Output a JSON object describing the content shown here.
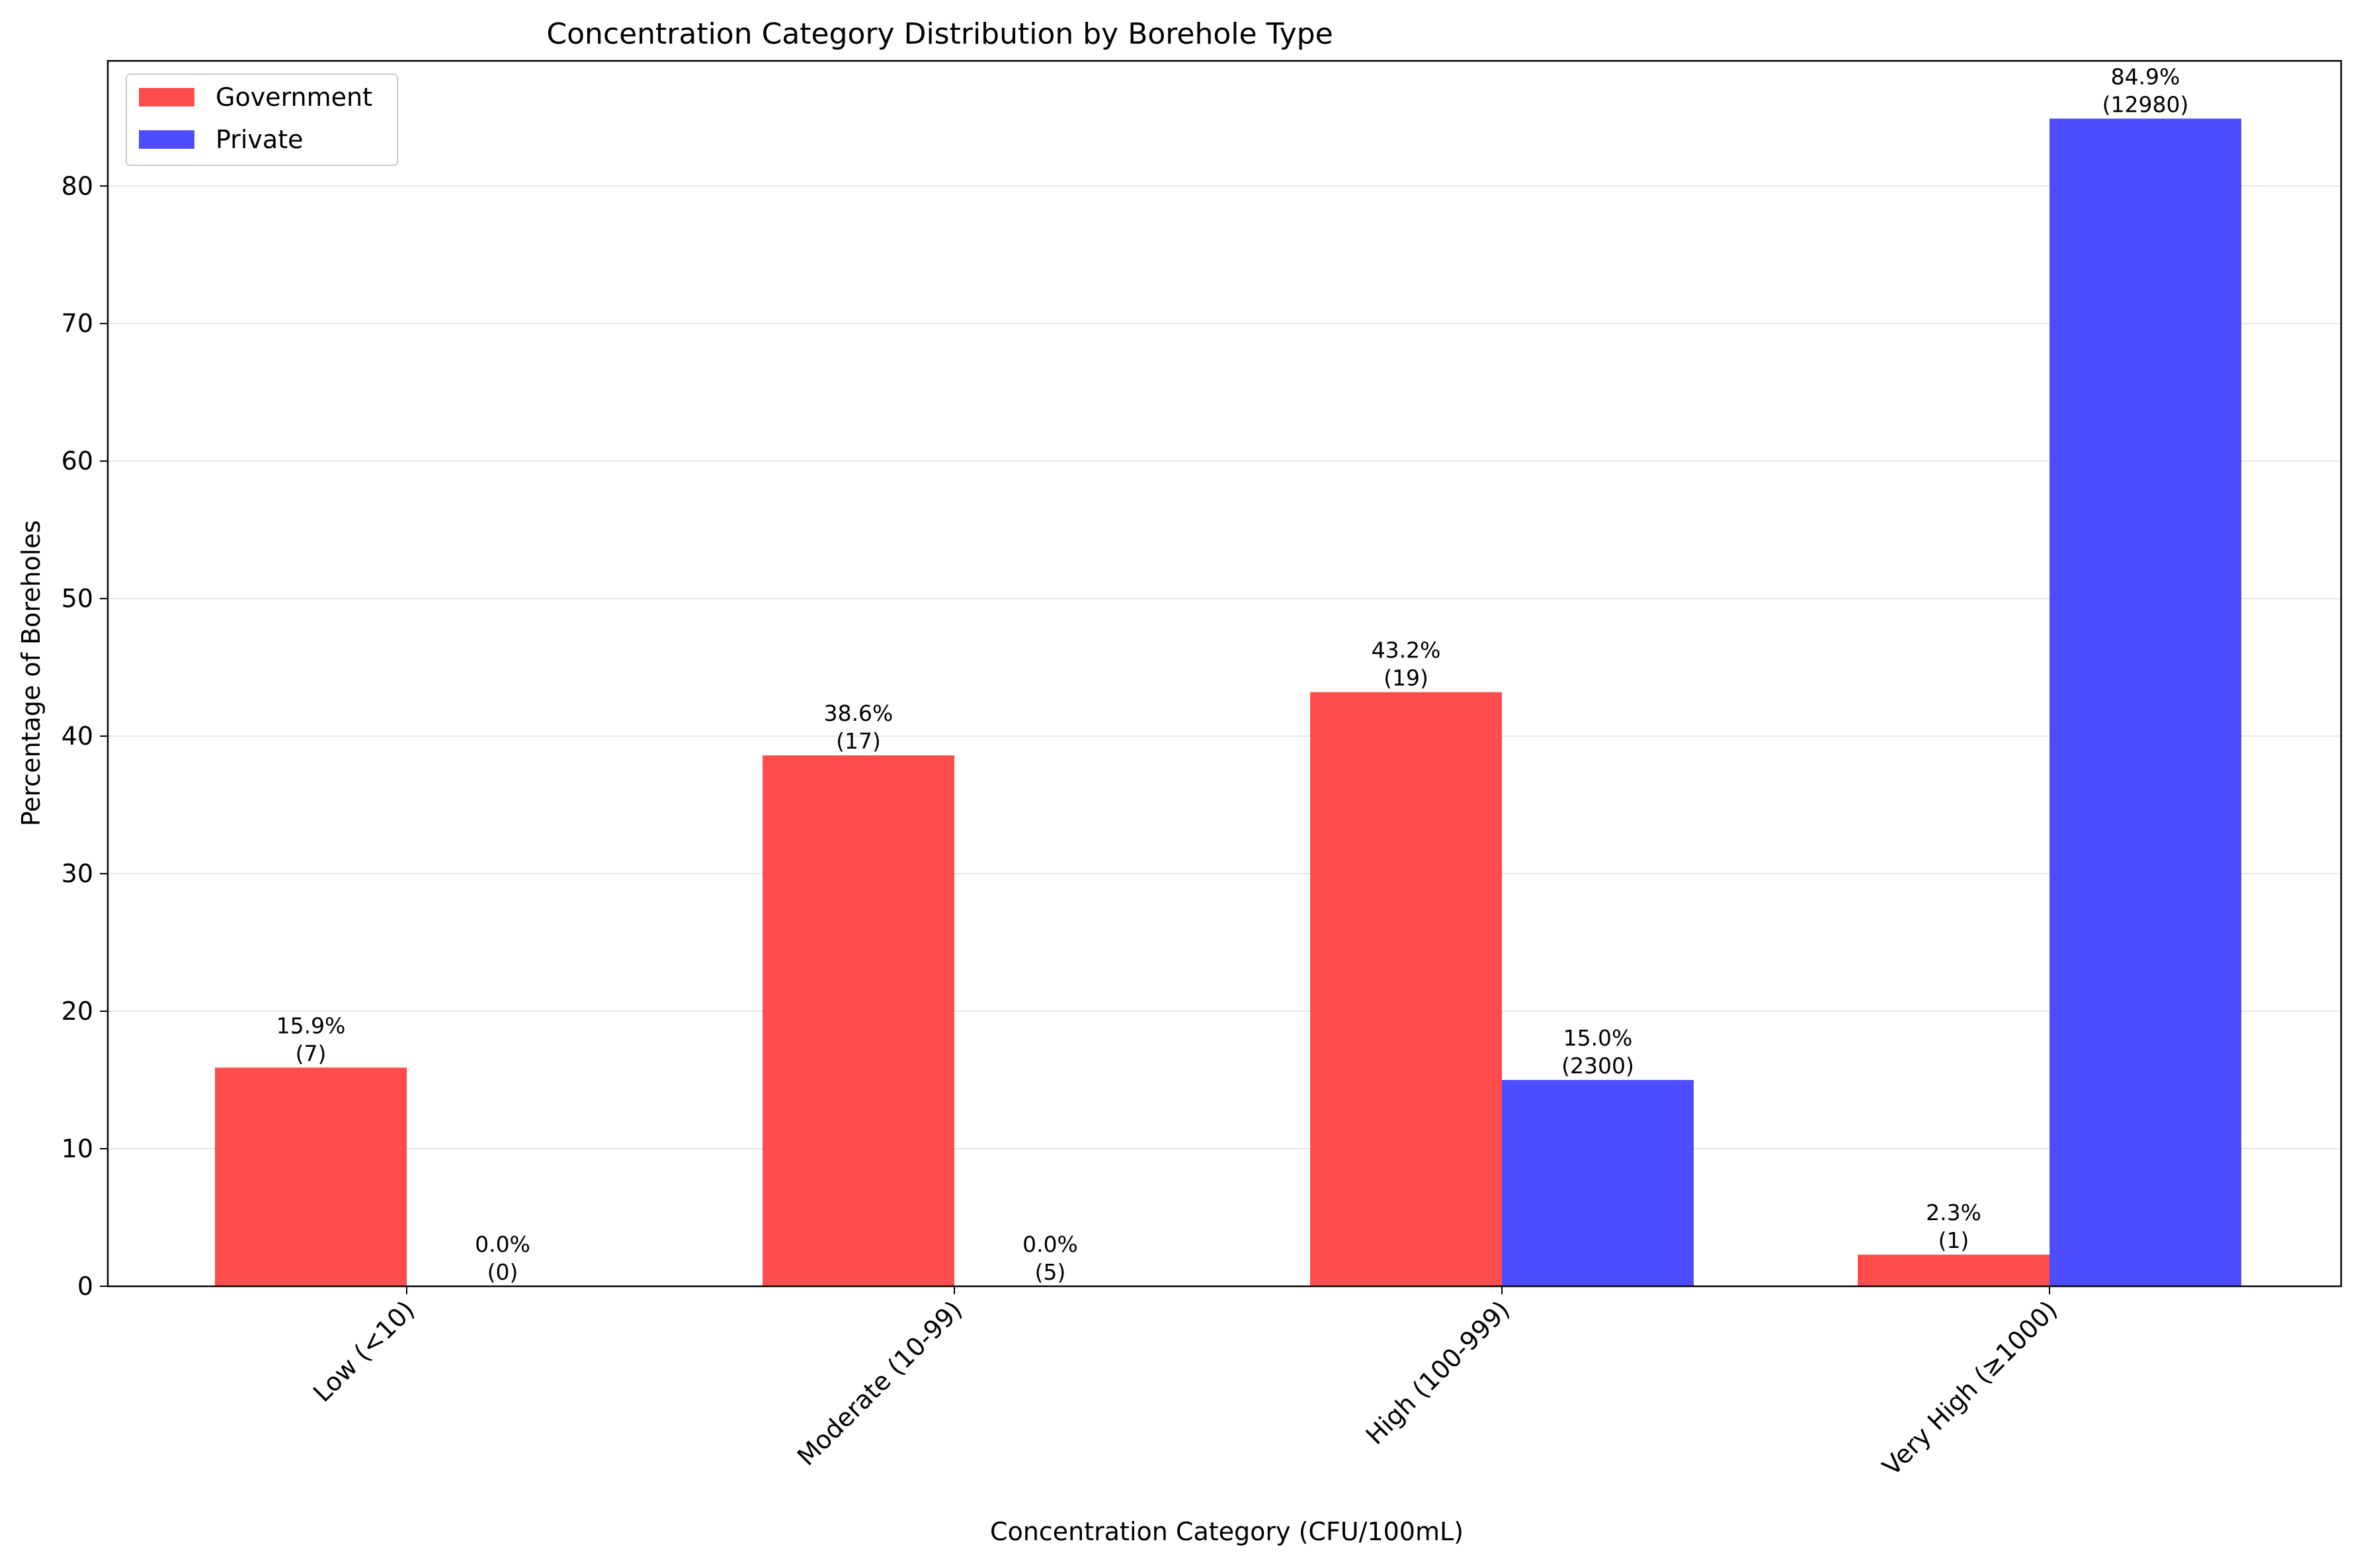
{
  "chart_data": {
    "type": "bar",
    "title": "Concentration Category Distribution by Borehole Type",
    "xlabel": "Concentration Category (CFU/100mL)",
    "ylabel": "Percentage of Boreholes",
    "categories": [
      "Low (<10)",
      "Moderate (10-99)",
      "High (100-999)",
      "Very High (≥1000)"
    ],
    "series": [
      {
        "name": "Government",
        "color": "#ff4d4d",
        "values": [
          15.9,
          38.6,
          43.2,
          2.3
        ],
        "labels": [
          [
            "15.9%",
            "(7)"
          ],
          [
            "38.6%",
            "(17)"
          ],
          [
            "43.2%",
            "(19)"
          ],
          [
            "2.3%",
            "(1)"
          ]
        ]
      },
      {
        "name": "Private",
        "color": "#4d4dff",
        "values": [
          0.0,
          0.0,
          15.0,
          84.9
        ],
        "labels": [
          [
            "0.0%",
            "(0)"
          ],
          [
            "0.0%",
            "(5)"
          ],
          [
            "15.0%",
            "(2300)"
          ],
          [
            "84.9%",
            "(12980)"
          ]
        ]
      }
    ],
    "ylim": [
      0,
      89.1
    ],
    "yticks": [
      0,
      10,
      20,
      30,
      40,
      50,
      60,
      70,
      80
    ],
    "grid": "y",
    "legend": "top-left"
  }
}
